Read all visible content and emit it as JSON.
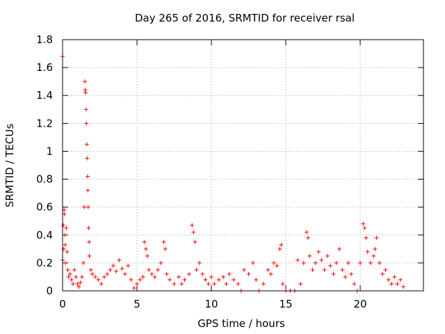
{
  "chart_data": {
    "type": "scatter",
    "title": "Day 265 of 2016, SRMTID for receiver rsal",
    "xlabel": "GPS time / hours",
    "ylabel": "SRMTID / TECUs",
    "xlim": [
      0,
      24.25
    ],
    "ylim": [
      0,
      1.8
    ],
    "xticks": [
      0,
      5,
      10,
      15,
      20
    ],
    "xtick_labels": [
      "0",
      "5",
      "10",
      "15",
      "20"
    ],
    "yticks": [
      0,
      0.2,
      0.4,
      0.6,
      0.8,
      1,
      1.2,
      1.4,
      1.6,
      1.8
    ],
    "ytick_labels": [
      "0",
      "0.2",
      "0.4",
      "0.6",
      "0.8",
      "1",
      "1.2",
      "1.4",
      "1.6",
      "1.8"
    ],
    "grid": true,
    "marker": "plus",
    "color": "#ff0000",
    "series": [
      {
        "name": "SRMTID",
        "points": [
          [
            0.0,
            1.68
          ],
          [
            0.0,
            0.22
          ],
          [
            0.05,
            0.47
          ],
          [
            0.08,
            0.3
          ],
          [
            0.1,
            0.58
          ],
          [
            0.12,
            0.55
          ],
          [
            0.15,
            0.4
          ],
          [
            0.18,
            0.33
          ],
          [
            0.2,
            0.2
          ],
          [
            0.25,
            0.45
          ],
          [
            0.3,
            0.28
          ],
          [
            0.35,
            0.15
          ],
          [
            0.4,
            0.1
          ],
          [
            0.5,
            0.12
          ],
          [
            0.6,
            0.08
          ],
          [
            0.7,
            0.05
          ],
          [
            0.8,
            0.15
          ],
          [
            0.9,
            0.1
          ],
          [
            1.0,
            0.05
          ],
          [
            1.1,
            0.03
          ],
          [
            1.2,
            0.06
          ],
          [
            1.3,
            0.1
          ],
          [
            1.4,
            0.2
          ],
          [
            1.45,
            0.6
          ],
          [
            1.5,
            1.5
          ],
          [
            1.52,
            1.44
          ],
          [
            1.55,
            1.42
          ],
          [
            1.58,
            1.3
          ],
          [
            1.6,
            1.2
          ],
          [
            1.63,
            1.05
          ],
          [
            1.65,
            0.95
          ],
          [
            1.68,
            0.82
          ],
          [
            1.7,
            0.72
          ],
          [
            1.72,
            0.6
          ],
          [
            1.75,
            0.45
          ],
          [
            1.78,
            0.35
          ],
          [
            1.8,
            0.25
          ],
          [
            1.9,
            0.15
          ],
          [
            2.0,
            0.12
          ],
          [
            2.2,
            0.1
          ],
          [
            2.4,
            0.08
          ],
          [
            2.6,
            0.05
          ],
          [
            2.8,
            0.1
          ],
          [
            3.0,
            0.12
          ],
          [
            3.2,
            0.15
          ],
          [
            3.4,
            0.18
          ],
          [
            3.6,
            0.14
          ],
          [
            3.8,
            0.22
          ],
          [
            4.0,
            0.16
          ],
          [
            4.2,
            0.12
          ],
          [
            4.4,
            0.18
          ],
          [
            4.6,
            0.08
          ],
          [
            4.8,
            0.02
          ],
          [
            5.0,
            0.05
          ],
          [
            5.2,
            0.08
          ],
          [
            5.4,
            0.1
          ],
          [
            5.5,
            0.35
          ],
          [
            5.6,
            0.3
          ],
          [
            5.7,
            0.25
          ],
          [
            5.8,
            0.15
          ],
          [
            6.0,
            0.12
          ],
          [
            6.2,
            0.1
          ],
          [
            6.4,
            0.15
          ],
          [
            6.6,
            0.2
          ],
          [
            6.8,
            0.35
          ],
          [
            6.9,
            0.3
          ],
          [
            7.0,
            0.12
          ],
          [
            7.2,
            0.08
          ],
          [
            7.5,
            0.05
          ],
          [
            7.8,
            0.1
          ],
          [
            8.0,
            0.05
          ],
          [
            8.2,
            0.08
          ],
          [
            8.5,
            0.12
          ],
          [
            8.7,
            0.47
          ],
          [
            8.8,
            0.42
          ],
          [
            8.9,
            0.35
          ],
          [
            9.0,
            0.15
          ],
          [
            9.2,
            0.2
          ],
          [
            9.4,
            0.12
          ],
          [
            9.6,
            0.08
          ],
          [
            9.8,
            0.05
          ],
          [
            10.0,
            0.1
          ],
          [
            10.2,
            0.05
          ],
          [
            10.5,
            0.08
          ],
          [
            10.8,
            0.1
          ],
          [
            11.0,
            0.05
          ],
          [
            11.2,
            0.12
          ],
          [
            11.5,
            0.08
          ],
          [
            11.8,
            0.05
          ],
          [
            12.0,
            0.0
          ],
          [
            12.2,
            0.15
          ],
          [
            12.5,
            0.12
          ],
          [
            12.8,
            0.2
          ],
          [
            13.0,
            0.08
          ],
          [
            13.2,
            0.0
          ],
          [
            13.5,
            0.05
          ],
          [
            13.8,
            0.15
          ],
          [
            14.0,
            0.12
          ],
          [
            14.2,
            0.2
          ],
          [
            14.4,
            0.18
          ],
          [
            14.6,
            0.3
          ],
          [
            14.7,
            0.33
          ],
          [
            14.8,
            0.05
          ],
          [
            15.0,
            0.0
          ],
          [
            15.3,
            0.0
          ],
          [
            15.6,
            0.0
          ],
          [
            15.8,
            0.22
          ],
          [
            16.0,
            0.05
          ],
          [
            16.2,
            0.2
          ],
          [
            16.4,
            0.42
          ],
          [
            16.5,
            0.38
          ],
          [
            16.6,
            0.25
          ],
          [
            16.8,
            0.15
          ],
          [
            17.0,
            0.2
          ],
          [
            17.2,
            0.28
          ],
          [
            17.4,
            0.22
          ],
          [
            17.6,
            0.15
          ],
          [
            17.8,
            0.25
          ],
          [
            18.0,
            0.18
          ],
          [
            18.2,
            0.12
          ],
          [
            18.4,
            0.2
          ],
          [
            18.6,
            0.3
          ],
          [
            18.8,
            0.15
          ],
          [
            19.0,
            0.1
          ],
          [
            19.2,
            0.2
          ],
          [
            19.4,
            0.12
          ],
          [
            19.6,
            0.05
          ],
          [
            19.8,
            0.0
          ],
          [
            20.0,
            0.2
          ],
          [
            20.2,
            0.48
          ],
          [
            20.3,
            0.45
          ],
          [
            20.4,
            0.38
          ],
          [
            20.5,
            0.28
          ],
          [
            20.7,
            0.2
          ],
          [
            20.9,
            0.25
          ],
          [
            21.0,
            0.3
          ],
          [
            21.1,
            0.38
          ],
          [
            21.3,
            0.2
          ],
          [
            21.5,
            0.12
          ],
          [
            21.7,
            0.15
          ],
          [
            21.9,
            0.08
          ],
          [
            22.1,
            0.05
          ],
          [
            22.3,
            0.1
          ],
          [
            22.5,
            0.05
          ],
          [
            22.7,
            0.08
          ],
          [
            22.9,
            0.03
          ]
        ]
      }
    ]
  }
}
